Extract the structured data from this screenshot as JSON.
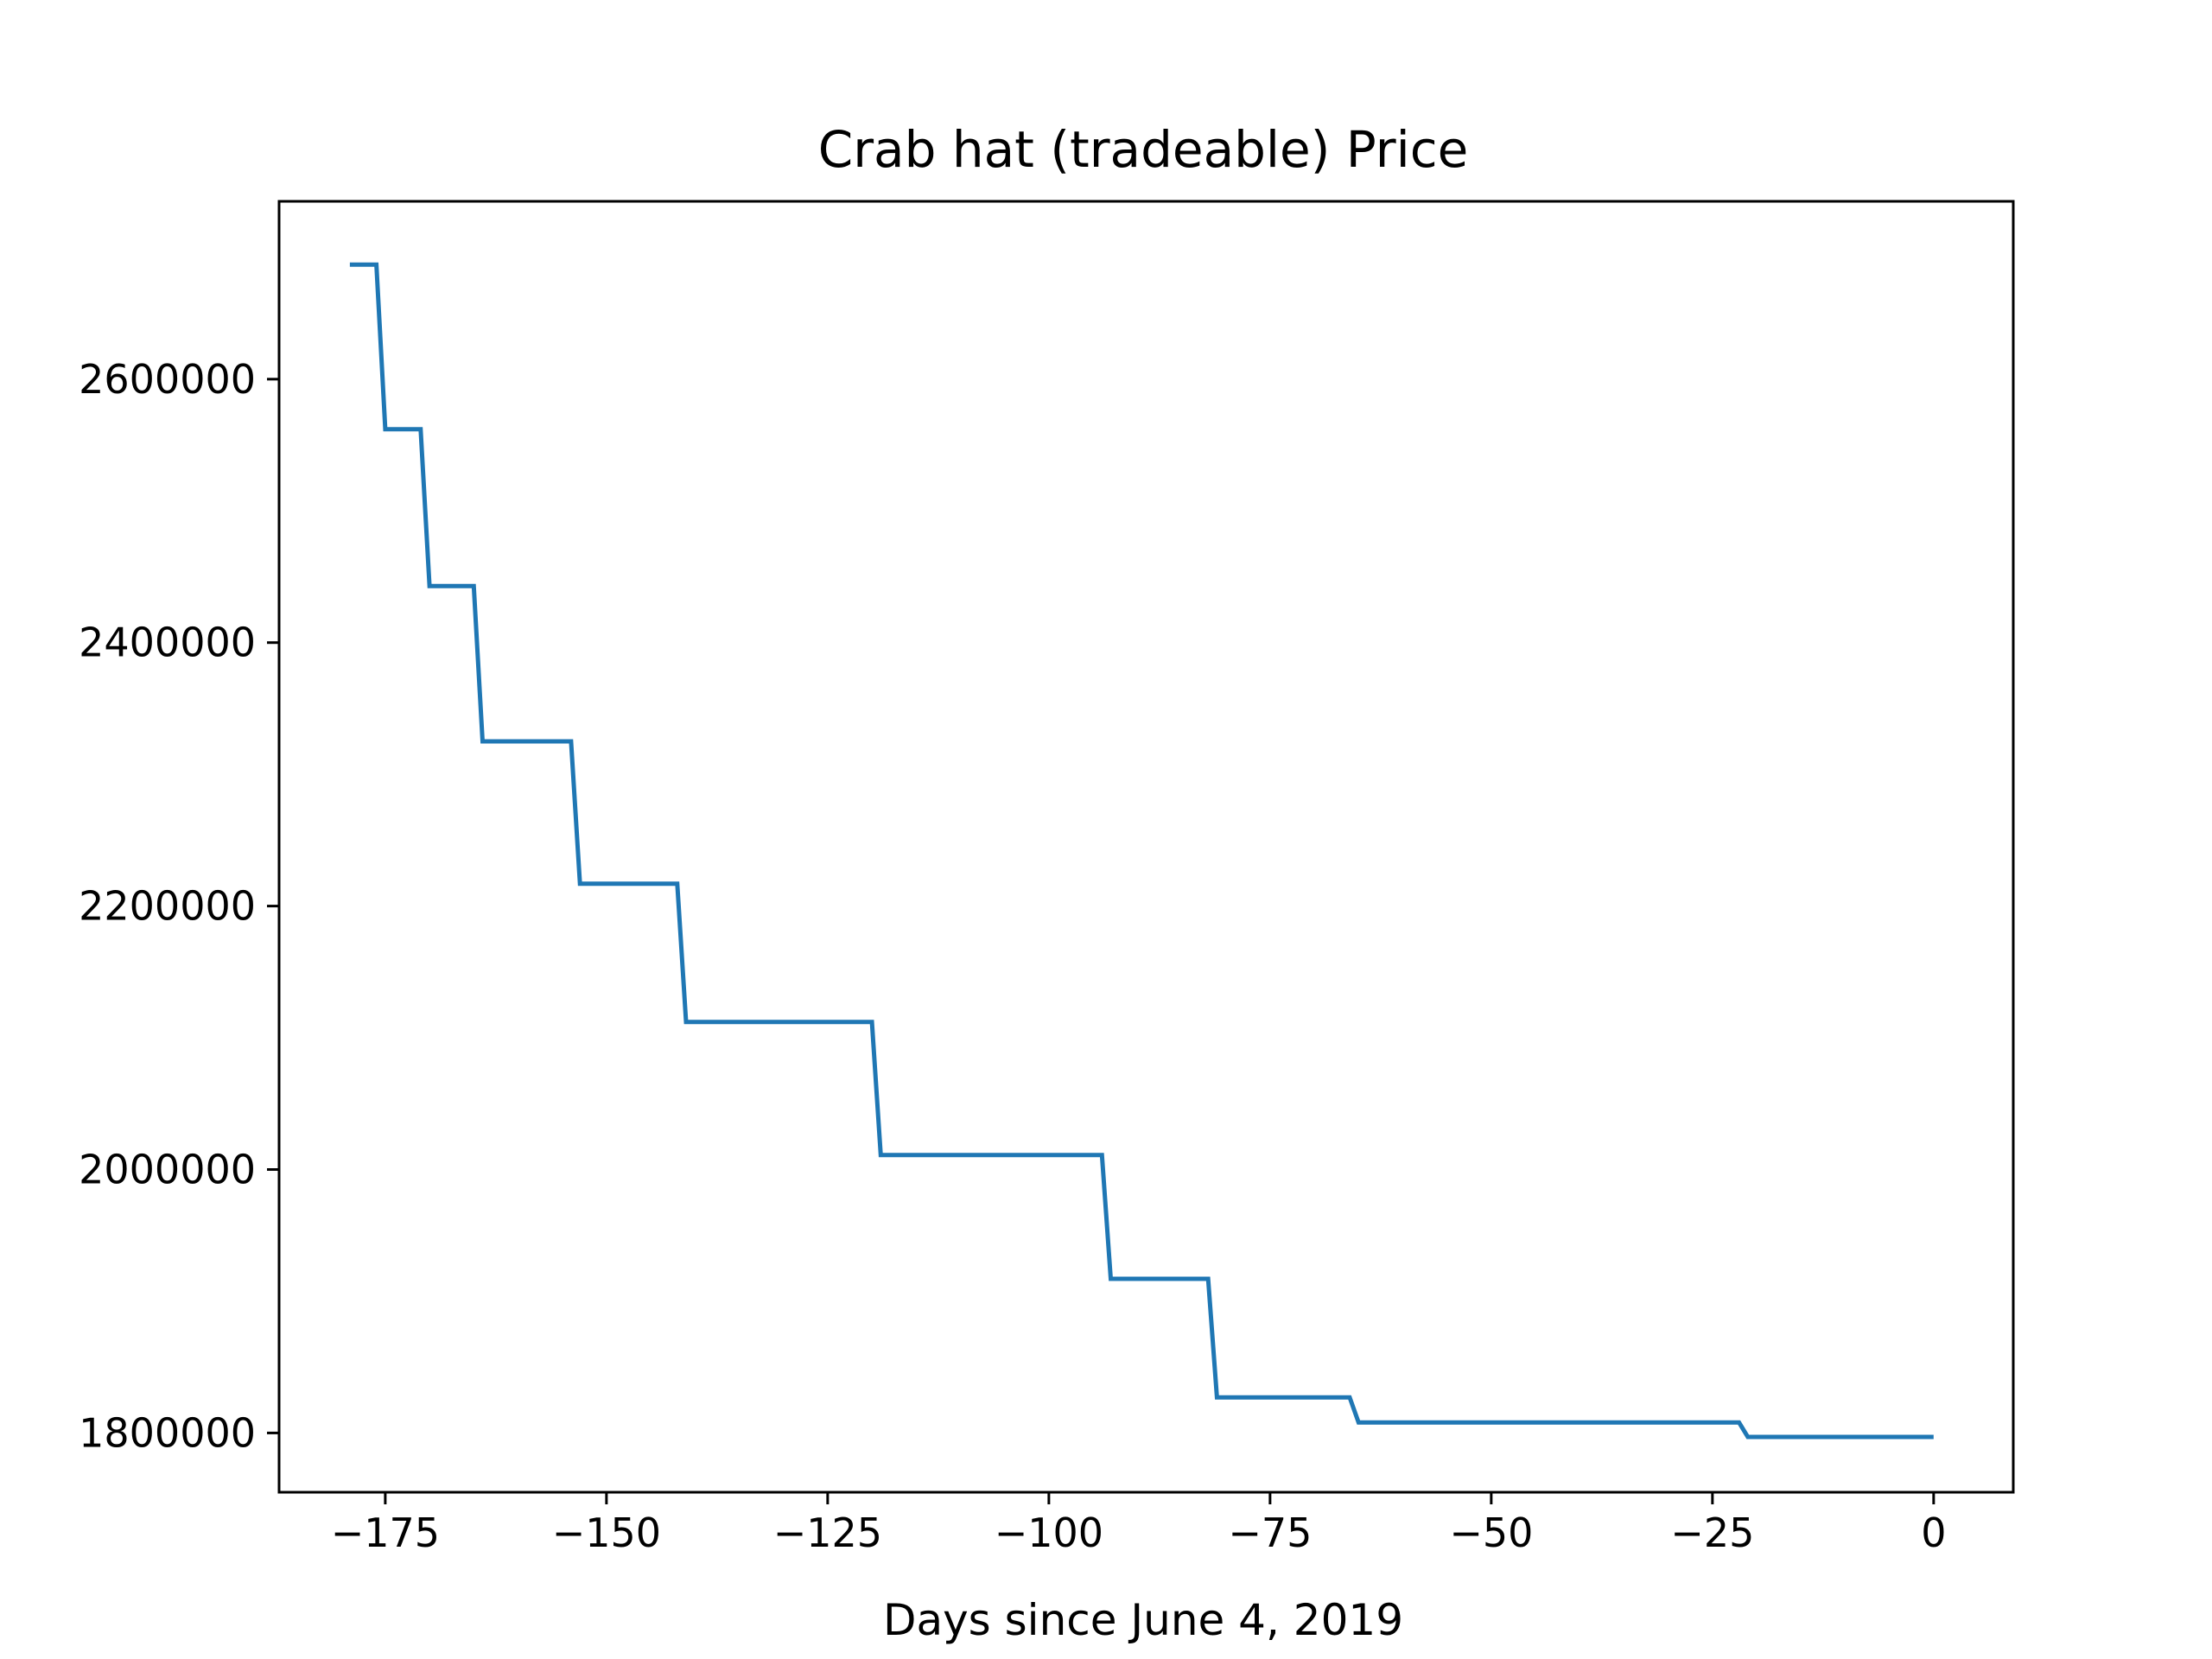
{
  "chart_data": {
    "type": "line",
    "title": "Crab hat (tradeable) Price",
    "xlabel": "Days since June 4, 2019",
    "ylabel": "",
    "xlim": [
      -187,
      9
    ],
    "ylim": [
      1755000,
      2735000
    ],
    "xticks": [
      -175,
      -150,
      -125,
      -100,
      -75,
      -50,
      -25,
      0
    ],
    "xtick_labels": [
      "−175",
      "−150",
      "−125",
      "−100",
      "−75",
      "−50",
      "−25",
      "0"
    ],
    "yticks": [
      1800000,
      2000000,
      2200000,
      2400000,
      2600000
    ],
    "ytick_labels": [
      "1800000",
      "2000000",
      "2200000",
      "2400000",
      "2600000"
    ],
    "grid": false,
    "legend": "none",
    "series": [
      {
        "color": "#1f77b4",
        "x": [
          -179,
          -176,
          -175,
          -171,
          -170,
          -165,
          -164,
          -154,
          -153,
          -142,
          -141,
          -120,
          -119,
          -94,
          -93,
          -82,
          -81,
          -66,
          -65,
          -22,
          -21,
          0
        ],
        "y": [
          2687000,
          2687000,
          2562000,
          2562000,
          2443000,
          2443000,
          2325000,
          2325000,
          2217000,
          2217000,
          2112000,
          2112000,
          2011000,
          2011000,
          1917000,
          1917000,
          1827000,
          1827000,
          1808000,
          1808000,
          1797000,
          1797000
        ]
      }
    ]
  }
}
